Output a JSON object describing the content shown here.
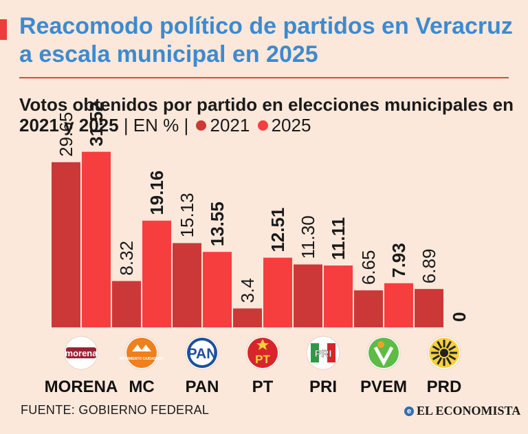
{
  "header": {
    "title": "Reacomodo político de partidos en Veracruz a escala municipal en 2025",
    "subtitle_main": "Votos obtenidos por partido en elecciones municipales en 2021 y 2025",
    "subtitle_unit": "| EN % |",
    "legend_2021": "2021",
    "legend_2025": "2025"
  },
  "colors": {
    "bar_2021": "#cc3838",
    "bar_2025": "#f63e3e",
    "title": "#3d8ad0",
    "background": "#fbe8da"
  },
  "chart_data": {
    "type": "bar",
    "title": "Votos obtenidos por partido en elecciones municipales en 2021 y 2025",
    "ylabel": "",
    "ylim": [
      0,
      33
    ],
    "grid": false,
    "legend_placement": "top-left",
    "categories": [
      "MORENA",
      "MC",
      "PAN",
      "PT",
      "PRI",
      "PVEM",
      "PRD"
    ],
    "series": [
      {
        "name": "2021",
        "values": [
          29.65,
          8.32,
          15.13,
          3.4,
          11.3,
          6.65,
          6.89
        ],
        "labels": [
          "29.65",
          "8.32",
          "15.13",
          "3.4",
          "11.30",
          "6.65",
          "6.89"
        ]
      },
      {
        "name": "2025",
        "values": [
          31.52,
          19.16,
          13.55,
          12.51,
          11.11,
          7.93,
          0
        ],
        "labels": [
          "31.52",
          "19.16",
          "13.55",
          "12.51",
          "11.11",
          "7.93",
          "0"
        ]
      }
    ]
  },
  "logos": [
    {
      "party": "MORENA",
      "icon": "morena-logo-icon",
      "text": "morena"
    },
    {
      "party": "MC",
      "icon": "mc-logo-icon",
      "text": "MOVIMIENTO CIUDADANO"
    },
    {
      "party": "PAN",
      "icon": "pan-logo-icon",
      "text": "PAN"
    },
    {
      "party": "PT",
      "icon": "pt-logo-icon",
      "text": "PT"
    },
    {
      "party": "PRI",
      "icon": "pri-logo-icon",
      "text": "PRI"
    },
    {
      "party": "PVEM",
      "icon": "pvem-logo-icon",
      "text": ""
    },
    {
      "party": "PRD",
      "icon": "prd-logo-icon",
      "text": ""
    }
  ],
  "footer": {
    "source": "FUENTE: GOBIERNO FEDERAL",
    "brand": "EL ECONOMISTA"
  }
}
